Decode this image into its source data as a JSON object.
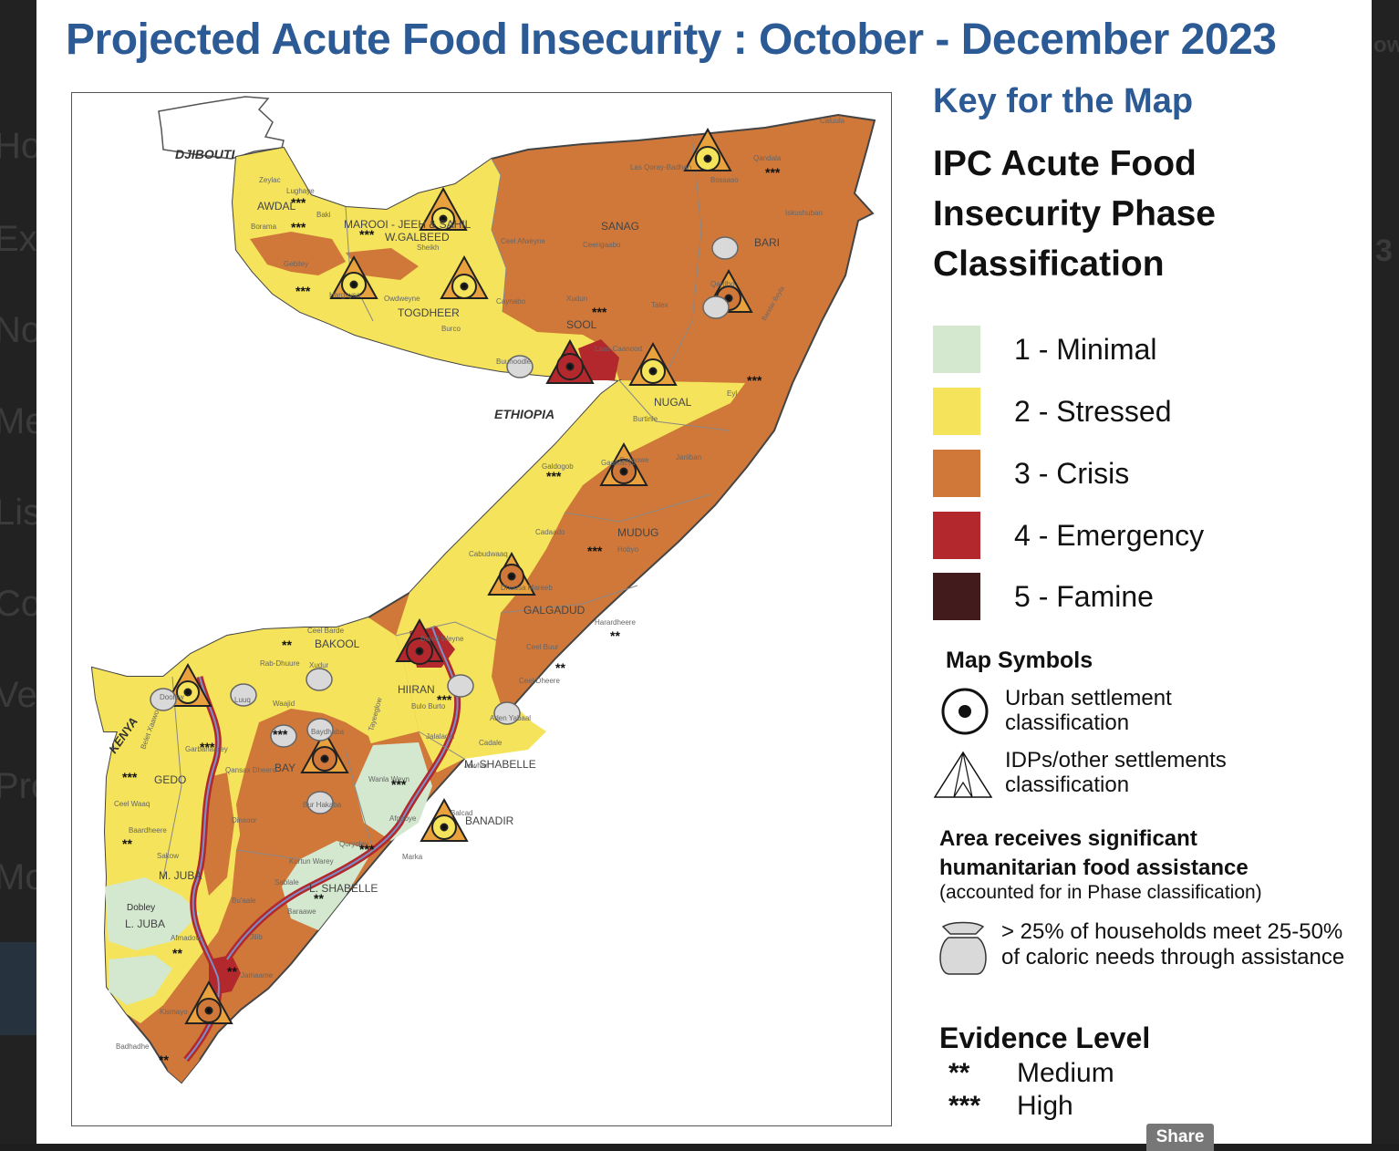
{
  "title": "Projected  Acute Food Insecurity : October - December 2023",
  "background_nav": [
    "Ho",
    "Exp",
    "No",
    "Me",
    "Lis",
    "Co",
    "Ve",
    "Pro",
    "Mo"
  ],
  "background_right": [
    "ow",
    "3"
  ],
  "key": {
    "heading": "Key for the Map",
    "ipc_title": "IPC Acute Food Insecurity Phase Classification",
    "phases": [
      {
        "label": "1 - Minimal",
        "color": "#d3e8cf"
      },
      {
        "label": "2 - Stressed",
        "color": "#f4e35b"
      },
      {
        "label": "3 - Crisis",
        "color": "#d0783a"
      },
      {
        "label": "4 - Emergency",
        "color": "#b3282d"
      },
      {
        "label": "5 - Famine",
        "color": "#421c1d"
      }
    ],
    "map_symbols_heading": "Map Symbols",
    "urban_label": "Urban settlement classification",
    "idp_label": "IDPs/other settlements classification",
    "assistance_heading": "Area receives significant humanitarian food assistance",
    "assistance_sub": "(accounted for in Phase classification)",
    "bag_label": "> 25% of households meet 25-50% of caloric needs through assistance",
    "evidence_heading": "Evidence Level",
    "evidence": [
      {
        "stars": "**",
        "label": "Medium"
      },
      {
        "stars": "***",
        "label": "High"
      }
    ]
  },
  "map": {
    "countries": {
      "djibouti": "DJIBOUTI",
      "ethiopia": "ETHIOPIA",
      "kenya": "KENYA"
    },
    "regions": [
      "AWDAL",
      "MAROOI - JEEH & SAHIL",
      "W.GALBEED",
      "SANAG",
      "BARI",
      "TOGDHEER",
      "SOOL",
      "NUGAL",
      "MUDUG",
      "GALGADUD",
      "BAKOOL",
      "HIIRAN",
      "GEDO",
      "BAY",
      "M. SHABELLE",
      "BANADIR",
      "M. JUBA",
      "L. SHABELLE",
      "L. JUBA"
    ],
    "districts": [
      "Zeylac",
      "Lughaye",
      "Baki",
      "Borama",
      "Gebiley",
      "Hargeysa",
      "Sheikh",
      "Owdweyne",
      "Burco",
      "Caynabo",
      "Xudun",
      "Talex",
      "Laas Caanood",
      "Buuhoodle",
      "Ceel Afweyne",
      "Ceerigaabo",
      "Las Qoray-Badhan",
      "Qandala",
      "Caluula",
      "Iskushuban",
      "Bossaso",
      "Qardho",
      "Bandar Beyla",
      "Eyl",
      "Burtinle",
      "Garoowe",
      "Jariiban",
      "Galdogob",
      "Gaalkacyo",
      "Cadaado",
      "Hobyo",
      "Cabudwaaq",
      "Dhuusa Mareeb",
      "Harardheere",
      "Ceel Buur",
      "Ceel Dheere",
      "Ceel Barde",
      "Rab-Dhuure",
      "Xudur",
      "Tayeeglow",
      "Waajid",
      "Beled Weyne",
      "Bulo Burto",
      "Aden Yabaal",
      "Jalalaqsi",
      "Cadale",
      "Jowhar",
      "Balcad",
      "Wanla Weyn",
      "Afgooye",
      "Marka",
      "Qoryoley",
      "Kurtun Warey",
      "Sablale",
      "Baraawe",
      "Bur Hakaba",
      "Baydhaba",
      "Qansax Dheere",
      "Dinsoor",
      "Luuq",
      "Garbahaarey",
      "Belet Xaawo",
      "Doolow",
      "Ceel Waaq",
      "Baardheere",
      "Sakow",
      "Bu'aale",
      "Jilib",
      "Jamaame",
      "Kismayo",
      "Afmadow",
      "Badhadhe",
      "Dobley"
    ]
  }
}
